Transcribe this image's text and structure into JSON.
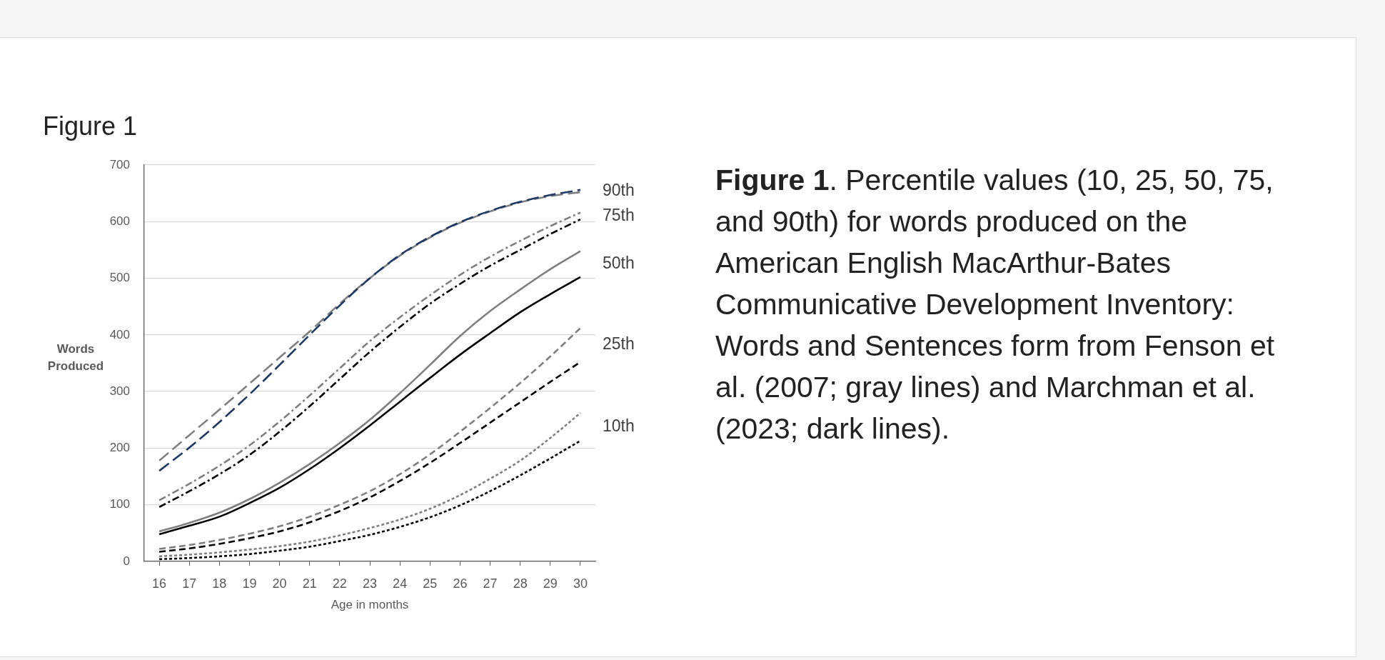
{
  "chart_data": {
    "type": "line",
    "title": "Figure 1",
    "xlabel": "Age in months",
    "ylabel": "Words Produced",
    "categories": [
      "16",
      "17",
      "18",
      "19",
      "20",
      "21",
      "22",
      "23",
      "24",
      "25",
      "26",
      "27",
      "28",
      "29",
      "30"
    ],
    "series": [
      {
        "name": "90th",
        "color": "#7f7f7f",
        "line_style": "longdash",
        "values": [
          178,
          223,
          268,
          314,
          360,
          406,
          455,
          500,
          540,
          572,
          598,
          618,
          634,
          645,
          652
        ]
      },
      {
        "color": "#203864",
        "line_style": "longdash",
        "values": [
          160,
          201,
          246,
          295,
          347,
          400,
          452,
          500,
          541,
          573,
          599,
          619,
          635,
          647,
          656
        ]
      },
      {
        "name": "75th",
        "color": "#7f7f7f",
        "line_style": "dashdot",
        "values": [
          108,
          137,
          169,
          205,
          247,
          293,
          341,
          389,
          431,
          470,
          506,
          538,
          566,
          592,
          616
        ]
      },
      {
        "color": "#000000",
        "line_style": "dashdot",
        "values": [
          96,
          124,
          154,
          188,
          229,
          274,
          322,
          370,
          414,
          455,
          490,
          522,
          550,
          578,
          604
        ]
      },
      {
        "name": "50th",
        "color": "#7f7f7f",
        "line_style": "solid",
        "values": [
          53,
          68,
          86,
          110,
          139,
          172,
          209,
          250,
          297,
          347,
          398,
          442,
          480,
          516,
          548
        ]
      },
      {
        "color": "#000000",
        "line_style": "solid",
        "values": [
          48,
          63,
          79,
          103,
          130,
          163,
          200,
          240,
          282,
          324,
          365,
          403,
          440,
          472,
          502
        ]
      },
      {
        "name": "25th",
        "color": "#7f7f7f",
        "line_style": "dashed",
        "values": [
          22,
          29,
          38,
          49,
          62,
          79,
          100,
          124,
          154,
          189,
          229,
          271,
          315,
          362,
          412
        ]
      },
      {
        "color": "#000000",
        "line_style": "dashed",
        "values": [
          17,
          23,
          31,
          41,
          53,
          69,
          89,
          113,
          142,
          174,
          209,
          245,
          281,
          317,
          352
        ]
      },
      {
        "name": "10th",
        "color": "#7f7f7f",
        "line_style": "dotted",
        "values": [
          9,
          12,
          16,
          21,
          27,
          35,
          46,
          59,
          74,
          93,
          117,
          146,
          178,
          218,
          262
        ]
      },
      {
        "color": "#000000",
        "line_style": "dotted",
        "values": [
          4,
          6,
          9,
          13,
          19,
          26,
          36,
          47,
          61,
          78,
          99,
          124,
          152,
          182,
          213
        ]
      }
    ],
    "ylim": [
      0,
      700
    ],
    "yticks": [
      0,
      100,
      200,
      300,
      400,
      500,
      600,
      700
    ],
    "grid": "y",
    "legend": false,
    "marker": "none",
    "annotations": [
      "Figure 1. Percentile values (10, 25, 50, 75, and 90th) for words produced on the American English MacArthur-Bates Communicative Development Inventory: Words and Sentences form from Fenson et al. (2007; gray lines) and Marchman et al. (2023; dark lines)."
    ]
  }
}
